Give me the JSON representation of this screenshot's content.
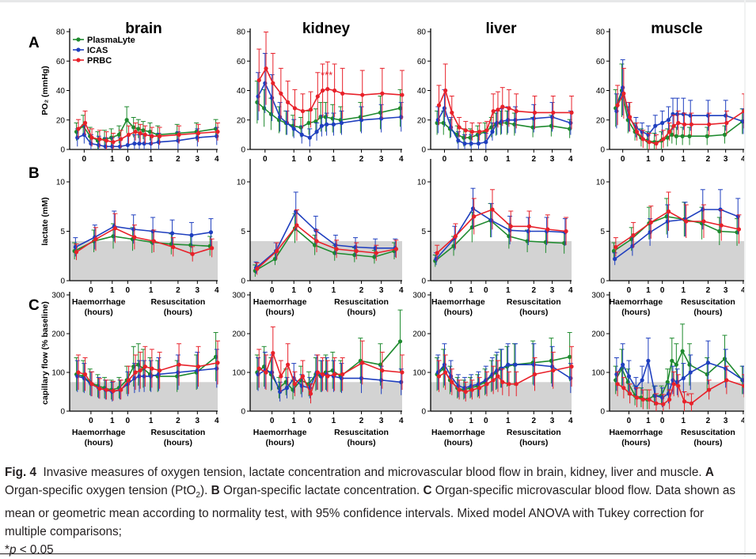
{
  "figure": {
    "organs": [
      "brain",
      "kidney",
      "liver",
      "muscle"
    ],
    "row_letters": [
      "A",
      "B",
      "C"
    ],
    "x_ticks_top": [
      "0",
      "0",
      "1",
      "0",
      "1",
      "2",
      "3",
      "4"
    ],
    "x_ticks": [
      "0",
      "1",
      "0",
      "1",
      "2",
      "3",
      "4"
    ],
    "haem_label_1": "Haemorrhage",
    "haem_label_2": "(hours)",
    "resus_label_1": "Resuscitation",
    "resus_label_2": "(hours)",
    "significance_kidney_A": "***",
    "significance_muscle_C": "*",
    "colors": {
      "PlasmaLyte": "#1e8a2e",
      "ICAS": "#1f3fbf",
      "PRBC": "#e8212a",
      "band": "#d3d3d3"
    }
  },
  "caption": {
    "fig_label": "Fig. 4",
    "text_main": "Invasive measures of oxygen tension, lactate concentration and microvascular blood flow in brain, kidney, liver and muscle.",
    "a_label": "A",
    "a_text_1": "Organ-specific oxygen tension (PtO",
    "a_text_sub": "2",
    "a_text_2": ").",
    "b_label": "B",
    "b_text": "Organ-specific lactate concentration.",
    "c_label": "C",
    "c_text": "Organ-specific microvascular blood flow. Data shown as mean or geometric mean according to normality test, with 95% confidence intervals. Mixed model ANOVA with Tukey correction for multiple comparisons;",
    "p_star": "*",
    "p_var": "p",
    "p_rest": " < 0.05"
  },
  "chart_data": [
    {
      "type": "line",
      "organ": "brain",
      "row": "A",
      "ylabel": "PO₂ (mmHg)",
      "ylim": [
        0,
        80
      ],
      "yticks": [
        0,
        20,
        40,
        60,
        80
      ],
      "legend": [
        "PlasmaLyte",
        "ICAS",
        "PRBC"
      ],
      "x_hours": [
        -0.9,
        -0.55,
        -0.2,
        0.2,
        0.55,
        0.9,
        1.3,
        1.7,
        2.05,
        2.3,
        2.55,
        2.9,
        3.3,
        4.3,
        5.3,
        6.3
      ],
      "series": [
        {
          "name": "PlasmaLyte",
          "values": [
            12,
            16,
            9,
            6,
            7,
            8,
            10,
            20,
            15,
            14,
            13,
            12,
            10,
            11,
            12,
            14
          ]
        },
        {
          "name": "ICAS",
          "values": [
            8,
            10,
            4,
            3,
            2,
            2,
            2,
            3,
            4,
            4,
            4,
            4,
            5,
            6,
            8,
            9
          ]
        },
        {
          "name": "PRBC",
          "values": [
            14,
            18,
            8,
            7,
            6,
            5,
            7,
            10,
            12,
            11,
            10,
            9,
            9,
            10,
            11,
            12
          ]
        }
      ]
    },
    {
      "type": "line",
      "organ": "kidney",
      "row": "A",
      "ylabel": "",
      "ylim": [
        0,
        80
      ],
      "yticks": [
        0,
        20,
        40,
        60,
        80
      ],
      "x_hours": [
        -0.9,
        -0.55,
        -0.2,
        0.2,
        0.55,
        0.9,
        1.3,
        1.7,
        2.05,
        2.3,
        2.55,
        2.9,
        3.3,
        4.3,
        5.3,
        6.3
      ],
      "series": [
        {
          "name": "PlasmaLyte",
          "values": [
            32,
            28,
            24,
            20,
            18,
            16,
            15,
            18,
            19,
            22,
            22,
            21,
            20,
            22,
            25,
            28
          ]
        },
        {
          "name": "ICAS",
          "values": [
            36,
            45,
            35,
            22,
            18,
            14,
            10,
            8,
            12,
            16,
            17,
            17,
            18,
            20,
            21,
            22
          ]
        },
        {
          "name": "PRBC",
          "values": [
            47,
            55,
            45,
            38,
            32,
            28,
            26,
            27,
            36,
            40,
            41,
            40,
            38,
            37,
            38,
            37
          ]
        }
      ]
    },
    {
      "type": "line",
      "organ": "liver",
      "row": "A",
      "ylabel": "",
      "ylim": [
        0,
        80
      ],
      "yticks": [
        0,
        20,
        40,
        60,
        80
      ],
      "x_hours": [
        -0.9,
        -0.55,
        -0.2,
        0.2,
        0.55,
        0.9,
        1.3,
        1.7,
        2.05,
        2.3,
        2.55,
        2.9,
        3.3,
        4.3,
        5.3,
        6.3
      ],
      "series": [
        {
          "name": "PlasmaLyte",
          "values": [
            18,
            18,
            14,
            10,
            8,
            8,
            10,
            12,
            15,
            17,
            18,
            18,
            17,
            15,
            16,
            14
          ]
        },
        {
          "name": "ICAS",
          "values": [
            20,
            28,
            15,
            6,
            4,
            4,
            4,
            5,
            12,
            18,
            19,
            20,
            20,
            21,
            22,
            18
          ]
        },
        {
          "name": "PRBC",
          "values": [
            30,
            40,
            25,
            15,
            13,
            12,
            12,
            13,
            26,
            27,
            29,
            28,
            26,
            25,
            25,
            25
          ]
        }
      ]
    },
    {
      "type": "line",
      "organ": "muscle",
      "row": "A",
      "ylabel": "",
      "ylim": [
        0,
        80
      ],
      "yticks": [
        0,
        20,
        40,
        60,
        80
      ],
      "x_hours": [
        -0.9,
        -0.55,
        -0.2,
        0.2,
        0.55,
        0.9,
        1.3,
        1.7,
        2.05,
        2.3,
        2.55,
        2.9,
        3.3,
        4.3,
        5.3,
        6.3
      ],
      "series": [
        {
          "name": "PlasmaLyte",
          "values": [
            28,
            40,
            20,
            12,
            8,
            6,
            5,
            6,
            8,
            10,
            9,
            9,
            9,
            9,
            10,
            19
          ]
        },
        {
          "name": "ICAS",
          "values": [
            26,
            42,
            22,
            15,
            12,
            10,
            16,
            18,
            20,
            24,
            24,
            24,
            23,
            23,
            23,
            19
          ]
        },
        {
          "name": "PRBC",
          "values": [
            30,
            38,
            22,
            12,
            7,
            5,
            4,
            7,
            12,
            16,
            18,
            17,
            17,
            17,
            18,
            26
          ]
        }
      ]
    },
    {
      "type": "line",
      "organ": "brain",
      "row": "B",
      "ylabel": "lactate (mM)",
      "ylim": [
        0,
        12
      ],
      "yticks": [
        0,
        5,
        10
      ],
      "x_hours": [
        -1,
        0,
        1,
        2,
        3,
        4,
        5,
        6
      ],
      "series": [
        {
          "name": "PlasmaLyte",
          "values": [
            3.0,
            4.0,
            4.5,
            4.2,
            3.9,
            3.7,
            3.6,
            3.5
          ]
        },
        {
          "name": "ICAS",
          "values": [
            3.4,
            4.4,
            5.5,
            5.2,
            5.0,
            4.8,
            4.6,
            4.9
          ]
        },
        {
          "name": "PRBC",
          "values": [
            2.9,
            4.2,
            5.3,
            4.4,
            4.0,
            3.4,
            2.7,
            3.3
          ]
        }
      ]
    },
    {
      "type": "line",
      "organ": "kidney",
      "row": "B",
      "ylabel": "",
      "ylim": [
        0,
        12
      ],
      "yticks": [
        0,
        5,
        10
      ],
      "x_hours": [
        -1,
        0,
        1,
        2,
        3,
        4,
        5,
        6
      ],
      "series": [
        {
          "name": "PlasmaLyte",
          "values": [
            1.0,
            2.2,
            5.3,
            3.6,
            2.8,
            2.6,
            2.4,
            3.0
          ]
        },
        {
          "name": "ICAS",
          "values": [
            1.3,
            3.0,
            7.0,
            5.1,
            3.6,
            3.4,
            3.3,
            3.3
          ]
        },
        {
          "name": "PRBC",
          "values": [
            1.2,
            3.0,
            5.6,
            4.0,
            3.2,
            3.0,
            2.8,
            3.2
          ]
        }
      ]
    },
    {
      "type": "line",
      "organ": "liver",
      "row": "B",
      "ylabel": "",
      "ylim": [
        0,
        12
      ],
      "yticks": [
        0,
        5,
        10
      ],
      "x_hours": [
        -1,
        0,
        1,
        2,
        3,
        4,
        5,
        6
      ],
      "series": [
        {
          "name": "PlasmaLyte",
          "values": [
            2.0,
            3.5,
            5.4,
            6.1,
            4.5,
            4.0,
            3.9,
            3.8
          ]
        },
        {
          "name": "ICAS",
          "values": [
            2.2,
            4.3,
            7.3,
            6.1,
            5.1,
            5.0,
            5.0,
            4.9
          ]
        },
        {
          "name": "PRBC",
          "values": [
            2.8,
            4.5,
            6.5,
            7.2,
            5.5,
            5.5,
            5.2,
            5.0
          ]
        }
      ]
    },
    {
      "type": "line",
      "organ": "muscle",
      "row": "B",
      "ylabel": "",
      "ylim": [
        0,
        12
      ],
      "yticks": [
        0,
        5,
        10
      ],
      "x_hours": [
        -1,
        0,
        1,
        2,
        3,
        4,
        5,
        6
      ],
      "series": [
        {
          "name": "PlasmaLyte",
          "values": [
            3.0,
            4.2,
            5.8,
            6.5,
            6.2,
            5.8,
            5.0,
            4.9
          ]
        },
        {
          "name": "ICAS",
          "values": [
            2.2,
            3.5,
            4.9,
            6.0,
            6.2,
            7.2,
            7.2,
            6.5
          ]
        },
        {
          "name": "PRBC",
          "values": [
            3.4,
            4.6,
            5.9,
            7.0,
            6.0,
            6.0,
            5.6,
            5.2
          ]
        }
      ]
    },
    {
      "type": "line",
      "organ": "brain",
      "row": "C",
      "ylabel": "capillary flow (% baseline)",
      "ylim": [
        0,
        300
      ],
      "yticks": [
        0,
        100,
        200,
        300
      ],
      "x_hours": [
        -0.9,
        -0.55,
        -0.2,
        0.2,
        0.55,
        0.9,
        1.3,
        1.7,
        2.05,
        2.3,
        2.55,
        2.9,
        3.3,
        4.3,
        5.3,
        6.3
      ],
      "series": [
        {
          "name": "PlasmaLyte",
          "values": [
            95,
            90,
            75,
            65,
            60,
            55,
            60,
            80,
            115,
            120,
            110,
            95,
            90,
            90,
            100,
            140
          ]
        },
        {
          "name": "ICAS",
          "values": [
            90,
            85,
            70,
            60,
            55,
            50,
            55,
            70,
            85,
            90,
            90,
            90,
            95,
            100,
            105,
            110
          ]
        },
        {
          "name": "PRBC",
          "values": [
            100,
            95,
            70,
            58,
            55,
            52,
            55,
            80,
            100,
            105,
            115,
            110,
            105,
            120,
            115,
            125
          ]
        }
      ]
    },
    {
      "type": "line",
      "organ": "kidney",
      "row": "C",
      "ylabel": "",
      "ylim": [
        0,
        300
      ],
      "yticks": [
        0,
        100,
        200,
        300
      ],
      "x_hours": [
        -0.9,
        -0.55,
        -0.2,
        0.2,
        0.55,
        0.9,
        1.3,
        1.7,
        2.05,
        2.3,
        2.55,
        2.9,
        3.3,
        4.3,
        5.3,
        6.3
      ],
      "series": [
        {
          "name": "PlasmaLyte",
          "values": [
            100,
            115,
            95,
            60,
            75,
            55,
            80,
            70,
            95,
            90,
            100,
            105,
            90,
            130,
            120,
            180
          ]
        },
        {
          "name": "ICAS",
          "values": [
            95,
            105,
            100,
            50,
            60,
            85,
            65,
            60,
            100,
            90,
            95,
            90,
            85,
            85,
            80,
            75
          ]
        },
        {
          "name": "PRBC",
          "values": [
            110,
            100,
            150,
            90,
            120,
            70,
            90,
            45,
            100,
            95,
            90,
            95,
            95,
            125,
            105,
            100
          ]
        }
      ]
    },
    {
      "type": "line",
      "organ": "liver",
      "row": "C",
      "ylabel": "",
      "ylim": [
        0,
        300
      ],
      "yticks": [
        0,
        100,
        200,
        300
      ],
      "x_hours": [
        -0.9,
        -0.55,
        -0.2,
        0.2,
        0.55,
        0.9,
        1.3,
        1.7,
        2.05,
        2.3,
        2.55,
        2.9,
        3.3,
        4.3,
        5.3,
        6.3
      ],
      "series": [
        {
          "name": "PlasmaLyte",
          "values": [
            95,
            110,
            80,
            60,
            55,
            60,
            65,
            75,
            90,
            100,
            110,
            115,
            120,
            125,
            130,
            140
          ]
        },
        {
          "name": "ICAS",
          "values": [
            100,
            120,
            90,
            65,
            60,
            65,
            70,
            80,
            95,
            105,
            110,
            120,
            120,
            120,
            115,
            85
          ]
        },
        {
          "name": "PRBC",
          "values": [
            90,
            100,
            75,
            55,
            50,
            55,
            60,
            70,
            80,
            90,
            75,
            70,
            70,
            95,
            105,
            115
          ]
        }
      ]
    },
    {
      "type": "line",
      "organ": "muscle",
      "row": "C",
      "ylabel": "",
      "ylim": [
        0,
        300
      ],
      "yticks": [
        0,
        100,
        200,
        300
      ],
      "x_hours": [
        -0.9,
        -0.55,
        -0.2,
        0.2,
        0.55,
        0.9,
        1.3,
        1.7,
        2.05,
        2.3,
        2.55,
        2.9,
        3.3,
        4.3,
        5.3,
        6.3
      ],
      "series": [
        {
          "name": "PlasmaLyte",
          "values": [
            80,
            110,
            75,
            40,
            35,
            30,
            40,
            40,
            75,
            130,
            120,
            155,
            120,
            95,
            135,
            80
          ]
        },
        {
          "name": "ICAS",
          "values": [
            95,
            120,
            90,
            60,
            80,
            130,
            40,
            35,
            45,
            80,
            75,
            85,
            100,
            125,
            110,
            80
          ]
        },
        {
          "name": "PRBC",
          "values": [
            70,
            60,
            45,
            35,
            30,
            30,
            20,
            18,
            30,
            70,
            65,
            25,
            20,
            55,
            80,
            65
          ]
        }
      ]
    }
  ]
}
